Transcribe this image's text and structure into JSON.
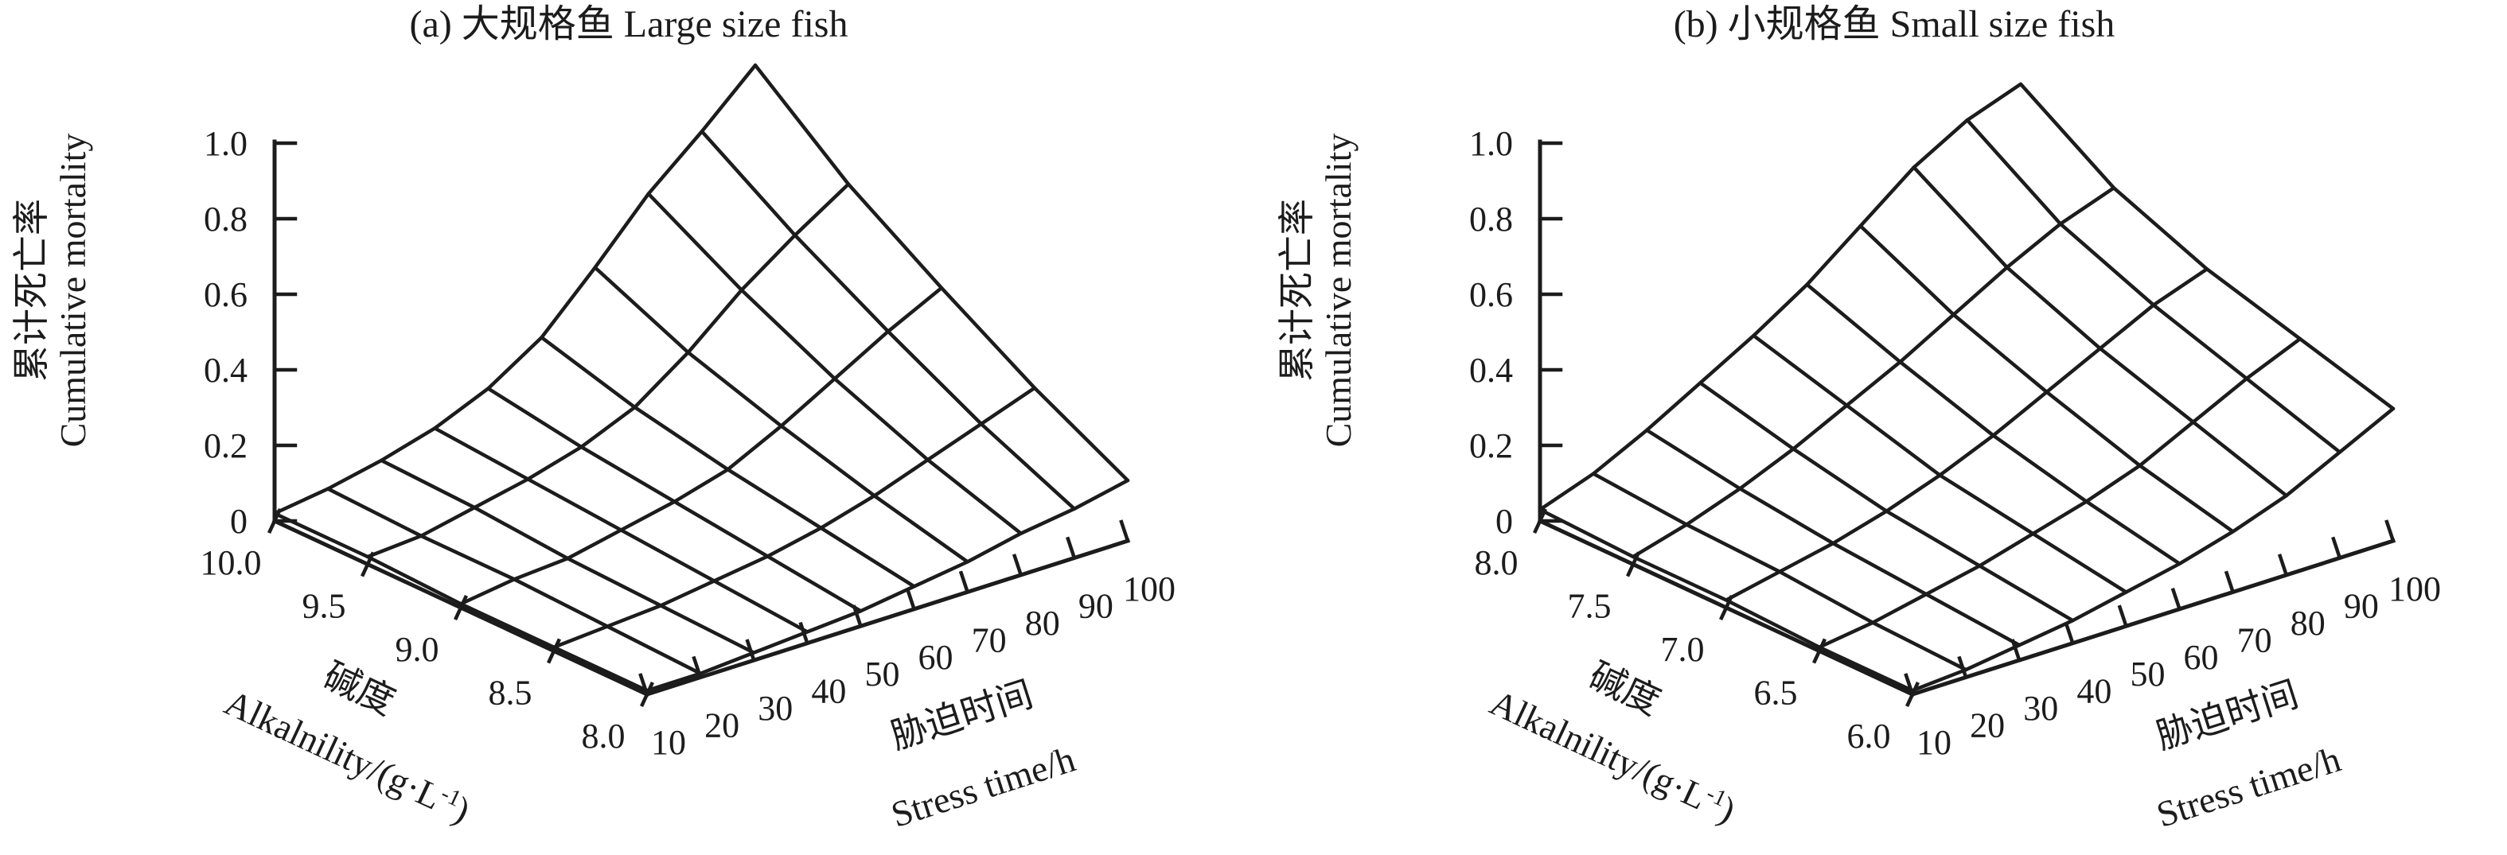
{
  "figure": {
    "background": "#ffffff",
    "line_color": "#1c1c1c"
  },
  "chart_data": [
    {
      "type": "surface",
      "panel": "a",
      "title": "(a) 大规格鱼 Large size fish",
      "x_axis": {
        "label_zh": "胁迫时间",
        "label_en": "Stress time/h",
        "tick_labels": [
          "10",
          "20",
          "30",
          "40",
          "50",
          "60",
          "70",
          "80",
          "90",
          "100"
        ],
        "values": [
          10,
          20,
          30,
          40,
          50,
          60,
          70,
          80,
          90,
          100
        ]
      },
      "y_axis": {
        "label_zh": "碱度",
        "label_en": "Alkalnility/(g·L⁻¹)",
        "tick_labels": [
          "10.0",
          "9.5",
          "9.0",
          "8.5",
          "8.0"
        ],
        "values": [
          10.0,
          9.5,
          9.0,
          8.5,
          8.0
        ]
      },
      "z_axis": {
        "label_zh": "累计死亡率",
        "label_en": "Cumulative mortality",
        "tick_labels": [
          "0",
          "0.2",
          "0.4",
          "0.6",
          "0.8",
          "1.0"
        ],
        "tick_values": [
          0,
          0.2,
          0.4,
          0.6,
          0.8,
          1.0
        ],
        "range": [
          0,
          1.0
        ]
      },
      "z_values_by_alkalinity": [
        [
          0.02,
          0.04,
          0.07,
          0.11,
          0.17,
          0.26,
          0.4,
          0.55,
          0.67,
          0.8
        ],
        [
          0.02,
          0.03,
          0.06,
          0.09,
          0.13,
          0.19,
          0.29,
          0.41,
          0.51,
          0.6
        ],
        [
          0.01,
          0.03,
          0.04,
          0.07,
          0.1,
          0.14,
          0.21,
          0.29,
          0.37,
          0.44
        ],
        [
          0.01,
          0.02,
          0.03,
          0.05,
          0.07,
          0.1,
          0.14,
          0.19,
          0.24,
          0.29
        ],
        [
          0.01,
          0.01,
          0.02,
          0.03,
          0.04,
          0.06,
          0.08,
          0.11,
          0.13,
          0.16
        ]
      ]
    },
    {
      "type": "surface",
      "panel": "b",
      "title": "(b) 小规格鱼 Small size fish",
      "x_axis": {
        "label_zh": "胁迫时间",
        "label_en": "Stress time/h",
        "tick_labels": [
          "10",
          "20",
          "30",
          "40",
          "50",
          "60",
          "70",
          "80",
          "90",
          "100"
        ],
        "values": [
          10,
          20,
          30,
          40,
          50,
          60,
          70,
          80,
          90,
          100
        ]
      },
      "y_axis": {
        "label_zh": "碱度",
        "label_en": "Alkalnility/(g·L⁻¹)",
        "tick_labels": [
          "8.0",
          "7.5",
          "7.0",
          "6.5",
          "6.0"
        ],
        "values": [
          8.0,
          7.5,
          7.0,
          6.5,
          6.0
        ]
      },
      "z_axis": {
        "label_zh": "累计死亡率",
        "label_en": "Cumulative mortality",
        "tick_labels": [
          "0",
          "0.2",
          "0.4",
          "0.6",
          "0.8",
          "1.0"
        ],
        "tick_values": [
          0,
          0.2,
          0.4,
          0.6,
          0.8,
          1.0
        ],
        "range": [
          0,
          1.0
        ]
      },
      "z_values_by_alkalinity": [
        [
          0.03,
          0.08,
          0.15,
          0.23,
          0.31,
          0.4,
          0.51,
          0.62,
          0.7,
          0.75
        ],
        [
          0.02,
          0.06,
          0.11,
          0.17,
          0.24,
          0.31,
          0.39,
          0.47,
          0.54,
          0.59
        ],
        [
          0.02,
          0.05,
          0.08,
          0.12,
          0.17,
          0.23,
          0.3,
          0.37,
          0.44,
          0.49
        ],
        [
          0.01,
          0.03,
          0.06,
          0.09,
          0.13,
          0.17,
          0.22,
          0.29,
          0.36,
          0.42
        ],
        [
          0.01,
          0.02,
          0.04,
          0.06,
          0.09,
          0.12,
          0.16,
          0.21,
          0.28,
          0.35
        ]
      ]
    }
  ]
}
